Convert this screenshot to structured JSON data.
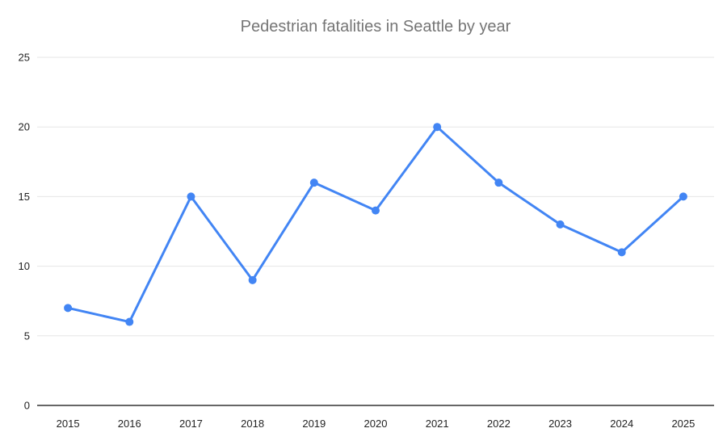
{
  "chart_data": {
    "type": "line",
    "title": "Pedestrian fatalities in Seattle by year",
    "categories": [
      "2015",
      "2016",
      "2017",
      "2018",
      "2019",
      "2020",
      "2021",
      "2022",
      "2023",
      "2024",
      "2025"
    ],
    "values": [
      7,
      6,
      15,
      9,
      16,
      14,
      20,
      16,
      13,
      11,
      15
    ],
    "xlabel": "",
    "ylabel": "",
    "y_ticks": [
      0,
      5,
      10,
      15,
      20,
      25
    ],
    "ylim": [
      0,
      25
    ],
    "grid": true,
    "legend": "none",
    "colors": {
      "line": "#4285f4",
      "point": "#4285f4",
      "gridline": "#e6e6e6",
      "axis_baseline": "#333333",
      "title_text": "#757575",
      "tick_label_text": "#222222",
      "background": "#ffffff"
    }
  }
}
